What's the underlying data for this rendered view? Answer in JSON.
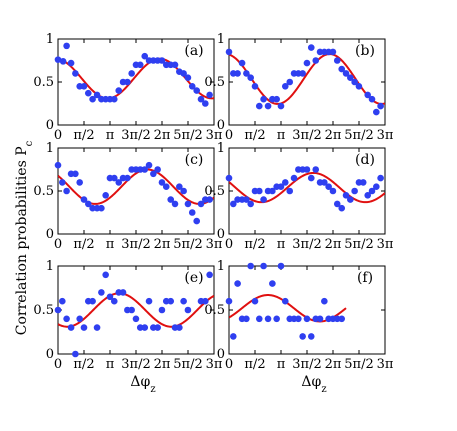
{
  "figure": {
    "ylabel_main": "Correlation probabilities P",
    "ylabel_sub": "c",
    "xlabel_main": "Δφ",
    "xlabel_sub": "z"
  },
  "colors": {
    "points": "#2f3ff0",
    "fit": "#e01010",
    "axes": "#000000"
  },
  "chart_data": [
    {
      "label": "(a)",
      "type": "scatter",
      "xlim": [
        0,
        9.42478
      ],
      "ylim": [
        0,
        1
      ],
      "xticks": [
        "0",
        "π/2",
        "π",
        "3π/2",
        "2π",
        "5π/2",
        "3π"
      ],
      "yticks": [
        "0",
        "0.5",
        "1"
      ],
      "fit": {
        "offset": 0.54,
        "amplitude": 0.23,
        "phase": 6.15,
        "xmax": 9.42478
      },
      "points": [
        [
          0,
          0.76
        ],
        [
          0.31,
          0.74
        ],
        [
          0.52,
          0.92
        ],
        [
          0.79,
          0.72
        ],
        [
          1.05,
          0.6
        ],
        [
          1.31,
          0.45
        ],
        [
          1.57,
          0.45
        ],
        [
          1.83,
          0.37
        ],
        [
          2.09,
          0.3
        ],
        [
          2.36,
          0.35
        ],
        [
          2.62,
          0.3
        ],
        [
          2.88,
          0.3
        ],
        [
          3.14,
          0.3
        ],
        [
          3.4,
          0.3
        ],
        [
          3.67,
          0.4
        ],
        [
          3.93,
          0.5
        ],
        [
          4.19,
          0.5
        ],
        [
          4.45,
          0.6
        ],
        [
          4.71,
          0.7
        ],
        [
          4.97,
          0.7
        ],
        [
          5.24,
          0.8
        ],
        [
          5.5,
          0.75
        ],
        [
          5.76,
          0.75
        ],
        [
          6.02,
          0.75
        ],
        [
          6.28,
          0.75
        ],
        [
          6.54,
          0.7
        ],
        [
          6.81,
          0.7
        ],
        [
          7.07,
          0.7
        ],
        [
          7.33,
          0.62
        ],
        [
          7.59,
          0.6
        ],
        [
          7.85,
          0.55
        ],
        [
          8.11,
          0.45
        ],
        [
          8.38,
          0.4
        ],
        [
          8.64,
          0.3
        ],
        [
          8.9,
          0.25
        ],
        [
          9.16,
          0.35
        ]
      ]
    },
    {
      "label": "(b)",
      "type": "scatter",
      "xlim": [
        0,
        9.42478
      ],
      "ylim": [
        0,
        1
      ],
      "xticks": [
        "0",
        "π/2",
        "π",
        "3π/2",
        "2π",
        "5π/2",
        "3π"
      ],
      "yticks": [
        "0",
        "0.5",
        "1"
      ],
      "fit": {
        "offset": 0.535,
        "amplitude": 0.29,
        "phase": 6.08,
        "xmax": 9.42478
      },
      "points": [
        [
          0,
          0.85
        ],
        [
          0.26,
          0.6
        ],
        [
          0.52,
          0.6
        ],
        [
          0.79,
          0.72
        ],
        [
          1.05,
          0.6
        ],
        [
          1.31,
          0.55
        ],
        [
          1.57,
          0.45
        ],
        [
          1.83,
          0.22
        ],
        [
          2.09,
          0.3
        ],
        [
          2.36,
          0.22
        ],
        [
          2.62,
          0.3
        ],
        [
          2.88,
          0.3
        ],
        [
          3.14,
          0.22
        ],
        [
          3.4,
          0.45
        ],
        [
          3.67,
          0.5
        ],
        [
          3.93,
          0.6
        ],
        [
          4.19,
          0.6
        ],
        [
          4.45,
          0.6
        ],
        [
          4.71,
          0.72
        ],
        [
          4.97,
          0.9
        ],
        [
          5.24,
          0.75
        ],
        [
          5.5,
          0.85
        ],
        [
          5.76,
          0.85
        ],
        [
          6.02,
          0.85
        ],
        [
          6.28,
          0.85
        ],
        [
          6.54,
          0.75
        ],
        [
          6.81,
          0.65
        ],
        [
          7.07,
          0.6
        ],
        [
          7.33,
          0.55
        ],
        [
          7.59,
          0.5
        ],
        [
          7.85,
          0.45
        ],
        [
          8.38,
          0.35
        ],
        [
          8.64,
          0.3
        ],
        [
          8.9,
          0.15
        ],
        [
          9.16,
          0.22
        ]
      ]
    },
    {
      "label": "(c)",
      "type": "scatter",
      "xlim": [
        0,
        9.42478
      ],
      "ylim": [
        0,
        1
      ],
      "xticks": [
        "0",
        "π/2",
        "π",
        "3π/2",
        "2π",
        "5π/2",
        "3π"
      ],
      "yticks": [
        "0",
        "0.5",
        "1"
      ],
      "fit": {
        "offset": 0.55,
        "amplitude": 0.2,
        "phase": 5.4,
        "xmax": 9.42478
      },
      "points": [
        [
          0,
          0.8
        ],
        [
          0.26,
          0.6
        ],
        [
          0.52,
          0.5
        ],
        [
          0.79,
          0.7
        ],
        [
          1.05,
          0.7
        ],
        [
          1.31,
          0.6
        ],
        [
          1.57,
          0.4
        ],
        [
          1.83,
          0.35
        ],
        [
          2.09,
          0.3
        ],
        [
          2.36,
          0.3
        ],
        [
          2.62,
          0.3
        ],
        [
          2.88,
          0.45
        ],
        [
          3.14,
          0.65
        ],
        [
          3.4,
          0.65
        ],
        [
          3.67,
          0.6
        ],
        [
          3.93,
          0.65
        ],
        [
          4.19,
          0.65
        ],
        [
          4.45,
          0.75
        ],
        [
          4.71,
          0.75
        ],
        [
          4.97,
          0.75
        ],
        [
          5.24,
          0.75
        ],
        [
          5.5,
          0.8
        ],
        [
          5.76,
          0.7
        ],
        [
          6.02,
          0.75
        ],
        [
          6.28,
          0.6
        ],
        [
          6.54,
          0.55
        ],
        [
          6.81,
          0.4
        ],
        [
          7.07,
          0.35
        ],
        [
          7.33,
          0.55
        ],
        [
          7.59,
          0.5
        ],
        [
          7.85,
          0.35
        ],
        [
          8.11,
          0.25
        ],
        [
          8.38,
          0.15
        ],
        [
          8.64,
          0.35
        ],
        [
          8.9,
          0.4
        ],
        [
          9.16,
          0.4
        ]
      ]
    },
    {
      "label": "(d)",
      "type": "scatter",
      "xlim": [
        0,
        9.42478
      ],
      "ylim": [
        0,
        1
      ],
      "xticks": [
        "0",
        "π/2",
        "π",
        "3π/2",
        "2π",
        "5π/2",
        "3π"
      ],
      "yticks": [
        "0",
        "0.5",
        "1"
      ],
      "fit": {
        "offset": 0.54,
        "amplitude": 0.17,
        "phase": 5.1,
        "xmax": 9.42478
      },
      "points": [
        [
          0,
          0.65
        ],
        [
          0.26,
          0.35
        ],
        [
          0.52,
          0.4
        ],
        [
          0.79,
          0.4
        ],
        [
          1.05,
          0.4
        ],
        [
          1.31,
          0.35
        ],
        [
          1.57,
          0.5
        ],
        [
          1.83,
          0.5
        ],
        [
          2.09,
          0.4
        ],
        [
          2.36,
          0.5
        ],
        [
          2.62,
          0.5
        ],
        [
          2.88,
          0.55
        ],
        [
          3.14,
          0.55
        ],
        [
          3.4,
          0.6
        ],
        [
          3.67,
          0.5
        ],
        [
          3.93,
          0.65
        ],
        [
          4.19,
          0.75
        ],
        [
          4.45,
          0.75
        ],
        [
          4.71,
          0.75
        ],
        [
          4.97,
          0.65
        ],
        [
          5.24,
          0.75
        ],
        [
          5.5,
          0.6
        ],
        [
          5.76,
          0.6
        ],
        [
          6.02,
          0.55
        ],
        [
          6.28,
          0.5
        ],
        [
          6.54,
          0.35
        ],
        [
          6.81,
          0.3
        ],
        [
          7.07,
          0.45
        ],
        [
          7.33,
          0.4
        ],
        [
          7.59,
          0.5
        ],
        [
          7.85,
          0.6
        ],
        [
          8.11,
          0.6
        ],
        [
          8.38,
          0.45
        ],
        [
          8.64,
          0.5
        ],
        [
          8.9,
          0.55
        ],
        [
          9.16,
          0.65
        ]
      ]
    },
    {
      "label": "(e)",
      "type": "scatter",
      "xlim": [
        0,
        9.42478
      ],
      "ylim": [
        0,
        1
      ],
      "xticks": [
        "0",
        "π/2",
        "π",
        "3π/2",
        "2π",
        "5π/2",
        "3π"
      ],
      "yticks": [
        "0",
        "0.5",
        "1"
      ],
      "fit": {
        "offset": 0.5,
        "amplitude": 0.19,
        "phase": 3.7,
        "xmax": 9.42478
      },
      "points": [
        [
          0,
          0.5
        ],
        [
          0.26,
          0.6
        ],
        [
          0.52,
          0.4
        ],
        [
          0.79,
          0.3
        ],
        [
          1.05,
          0.0
        ],
        [
          1.31,
          0.4
        ],
        [
          1.57,
          0.3
        ],
        [
          1.83,
          0.6
        ],
        [
          2.09,
          0.6
        ],
        [
          2.36,
          0.3
        ],
        [
          2.62,
          0.7
        ],
        [
          2.88,
          0.9
        ],
        [
          3.14,
          0.65
        ],
        [
          3.4,
          0.6
        ],
        [
          3.67,
          0.7
        ],
        [
          3.93,
          0.7
        ],
        [
          4.19,
          0.5
        ],
        [
          4.45,
          0.5
        ],
        [
          4.71,
          0.4
        ],
        [
          4.97,
          0.3
        ],
        [
          5.24,
          0.3
        ],
        [
          5.5,
          0.6
        ],
        [
          5.76,
          0.3
        ],
        [
          6.02,
          0.3
        ],
        [
          6.28,
          0.5
        ],
        [
          6.54,
          0.6
        ],
        [
          6.81,
          0.6
        ],
        [
          7.07,
          0.3
        ],
        [
          7.33,
          0.3
        ],
        [
          7.59,
          0.6
        ],
        [
          7.85,
          0.5
        ],
        [
          8.64,
          0.6
        ],
        [
          8.9,
          0.6
        ],
        [
          9.16,
          0.9
        ]
      ]
    },
    {
      "label": "(f)",
      "type": "scatter",
      "xlim": [
        0,
        9.42478
      ],
      "ylim": [
        0,
        1
      ],
      "xticks": [
        "0",
        "π/2",
        "π",
        "3π/2",
        "2π",
        "5π/2",
        "3π"
      ],
      "yticks": [
        "0",
        "0.5",
        "1"
      ],
      "fit": {
        "offset": 0.52,
        "amplitude": 0.15,
        "phase": 2.35,
        "xmax": 7.07
      },
      "points": [
        [
          0,
          0.6
        ],
        [
          0.26,
          0.2
        ],
        [
          0.52,
          0.8
        ],
        [
          0.79,
          0.4
        ],
        [
          1.05,
          0.4
        ],
        [
          1.31,
          1.0
        ],
        [
          1.57,
          0.6
        ],
        [
          1.83,
          0.4
        ],
        [
          2.09,
          1.0
        ],
        [
          2.36,
          0.4
        ],
        [
          2.62,
          0.8
        ],
        [
          2.88,
          0.4
        ],
        [
          3.14,
          1.0
        ],
        [
          3.4,
          0.6
        ],
        [
          3.67,
          0.4
        ],
        [
          3.93,
          0.4
        ],
        [
          4.19,
          0.4
        ],
        [
          4.45,
          0.2
        ],
        [
          4.71,
          0.4
        ],
        [
          4.97,
          0.2
        ],
        [
          5.24,
          0.4
        ],
        [
          5.5,
          0.4
        ],
        [
          5.76,
          0.6
        ],
        [
          6.02,
          0.4
        ],
        [
          6.28,
          0.4
        ],
        [
          6.54,
          0.4
        ],
        [
          6.81,
          0.4
        ]
      ]
    }
  ]
}
